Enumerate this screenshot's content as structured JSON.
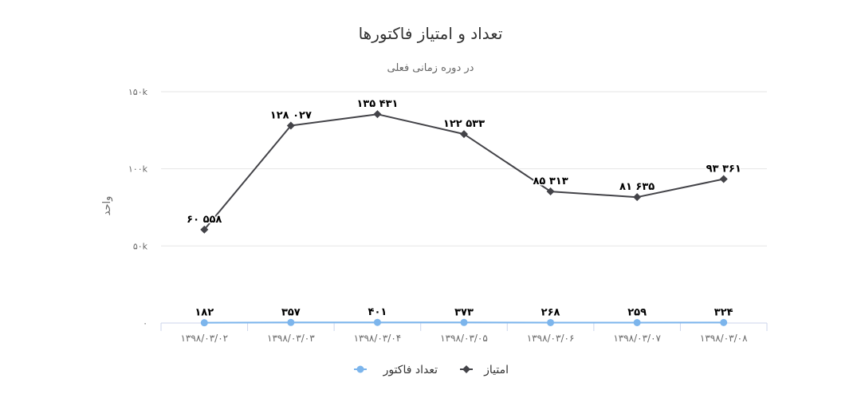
{
  "chart_data": {
    "type": "line",
    "title": "تعداد و امتیاز فاکتورها",
    "subtitle": "در دوره زمانی فعلی",
    "ylabel": "واحد",
    "ylim": [
      0,
      150000
    ],
    "y_ticks": [
      {
        "value": 0,
        "label": "۰"
      },
      {
        "value": 50000,
        "label": "۵۰k"
      },
      {
        "value": 100000,
        "label": "۱۰۰k"
      },
      {
        "value": 150000,
        "label": "۱۵۰k"
      }
    ],
    "categories": [
      "۱۳۹۸/۰۳/۰۲",
      "۱۳۹۸/۰۳/۰۳",
      "۱۳۹۸/۰۳/۰۴",
      "۱۳۹۸/۰۳/۰۵",
      "۱۳۹۸/۰۳/۰۶",
      "۱۳۹۸/۰۳/۰۷",
      "۱۳۹۸/۰۳/۰۸"
    ],
    "grid": true,
    "legend_position": "bottom-center",
    "series": [
      {
        "name": "امتیاز",
        "color": "#434348",
        "marker": "diamond",
        "values": [
          60558,
          128027,
          135431,
          122533,
          85313,
          81635,
          93361
        ],
        "labels": [
          "۶۰ ۵۵۸",
          "۱۲۸ ۰۲۷",
          "۱۳۵ ۴۳۱",
          "۱۲۲ ۵۳۳",
          "۸۵ ۳۱۳",
          "۸۱ ۶۳۵",
          "۹۳ ۳۶۱"
        ]
      },
      {
        "name": "تعداد فاکتور",
        "color": "#7cb5ec",
        "marker": "circle",
        "values": [
          182,
          357,
          401,
          373,
          268,
          259,
          324
        ],
        "labels": [
          "۱۸۲",
          "۳۵۷",
          "۴۰۱",
          "۳۷۳",
          "۲۶۸",
          "۲۵۹",
          "۳۲۴"
        ]
      }
    ],
    "legend_order": [
      1,
      0
    ]
  }
}
